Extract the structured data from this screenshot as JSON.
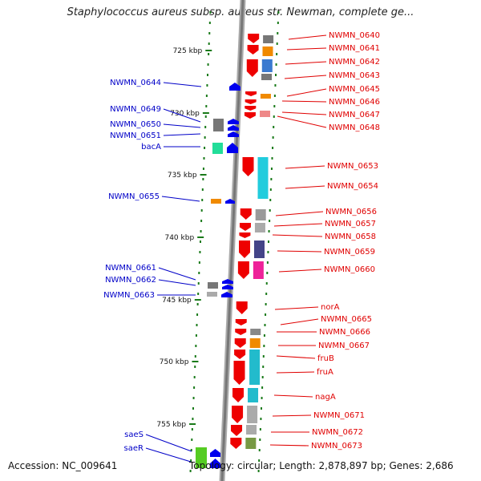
{
  "title": "Staphylococcus aureus subsp. aureus str. Newman, complete ge...",
  "footer": {
    "accession": "Accession: NC_009641",
    "topology": "Topology: circular; Length: 2,878,897 bp; Genes: 2,686"
  },
  "colors": {
    "plus_label": "#e00000",
    "minus_label": "#0000c8",
    "plus_arrow": "#ee0000",
    "minus_arrow": "#0000ee",
    "backbone": "#888888",
    "tick": "#1a7a1a"
  },
  "ticks": [
    {
      "label": "725 kbp"
    },
    {
      "label": "730 kbp"
    },
    {
      "label": "735 kbp"
    },
    {
      "label": "740 kbp"
    },
    {
      "label": "745 kbp"
    },
    {
      "label": "750 kbp"
    },
    {
      "label": "755 kbp"
    }
  ],
  "plus_genes": [
    {
      "name": "NWMN_0640"
    },
    {
      "name": "NWMN_0641"
    },
    {
      "name": "NWMN_0642"
    },
    {
      "name": "NWMN_0643"
    },
    {
      "name": "NWMN_0645"
    },
    {
      "name": "NWMN_0646"
    },
    {
      "name": "NWMN_0647"
    },
    {
      "name": "NWMN_0648"
    },
    {
      "name": "NWMN_0653"
    },
    {
      "name": "NWMN_0654"
    },
    {
      "name": "NWMN_0656"
    },
    {
      "name": "NWMN_0657"
    },
    {
      "name": "NWMN_0658"
    },
    {
      "name": "NWMN_0659"
    },
    {
      "name": "NWMN_0660"
    },
    {
      "name": "norA"
    },
    {
      "name": "NWMN_0665"
    },
    {
      "name": "NWMN_0666"
    },
    {
      "name": "NWMN_0667"
    },
    {
      "name": "fruB"
    },
    {
      "name": "fruA"
    },
    {
      "name": "nagA"
    },
    {
      "name": "NWMN_0671"
    },
    {
      "name": "NWMN_0672"
    },
    {
      "name": "NWMN_0673"
    }
  ],
  "minus_genes": [
    {
      "name": "NWMN_0644"
    },
    {
      "name": "NWMN_0649"
    },
    {
      "name": "NWMN_0650"
    },
    {
      "name": "NWMN_0651"
    },
    {
      "name": "bacA"
    },
    {
      "name": "NWMN_0655"
    },
    {
      "name": "NWMN_0661"
    },
    {
      "name": "NWMN_0662"
    },
    {
      "name": "NWMN_0663"
    },
    {
      "name": "saeS"
    },
    {
      "name": "saeR"
    }
  ]
}
